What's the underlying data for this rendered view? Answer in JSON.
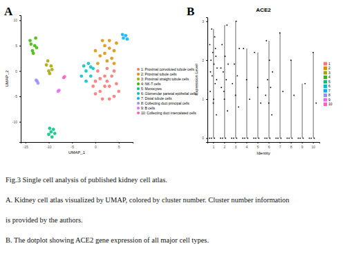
{
  "figure": {
    "panels": [
      "A",
      "B"
    ],
    "caption": [
      "Fig.3 Single cell analysis of published kidney cell atlas.",
      "A. Kidney cell atlas visualized by UMAP, colored by cluster number. Cluster number information",
      "is provided by the authors.",
      "B. The dotplot showing ACE2 gene expression of all major cell types."
    ]
  },
  "chart_data": [
    {
      "type": "scatter",
      "xlabel": "UMAP_1",
      "ylabel": "UMAP_2",
      "xlim": [
        -16,
        8
      ],
      "ylim": [
        -14,
        11
      ],
      "xticks": [
        -15,
        -10,
        -5,
        0,
        5
      ],
      "yticks": [
        -10,
        -5,
        0,
        5,
        10
      ],
      "legend": "right",
      "series": [
        {
          "name": "1: Proximal convoluted tubule cells",
          "color": "#F8766D",
          "x": [
            0,
            1,
            2,
            3,
            4,
            1.5,
            0.5,
            2.5,
            3.5,
            4.5,
            -0.5,
            2,
            3,
            1,
            4,
            0,
            2.5,
            5
          ],
          "y": [
            -2,
            -4,
            -1,
            -3,
            -5,
            -5.5,
            0,
            0.5,
            -1,
            -2.5,
            -3,
            -3,
            -5.5,
            -1.5,
            0,
            -4.5,
            -2,
            -4
          ]
        },
        {
          "name": "2: Proximal tubule cells",
          "color": "#D89000",
          "x": [
            1,
            2,
            3,
            4,
            0.5,
            2.5,
            3.5,
            1.5,
            4.5,
            2,
            3,
            0,
            4
          ],
          "y": [
            3,
            5,
            6,
            4,
            1.5,
            2,
            2.5,
            6,
            5.5,
            3.5,
            4.5,
            4,
            1.5
          ]
        },
        {
          "name": "3: Proximal straight tubule cells",
          "color": "#A3A500",
          "x": [
            -10,
            -9.5,
            -10.2,
            -9.8,
            -10.5,
            -9.3
          ],
          "y": [
            0,
            1,
            2,
            -0.5,
            1.2,
            0.3
          ]
        },
        {
          "name": "4: NK-T cells",
          "color": "#39B600",
          "x": [
            -13.5,
            -13,
            -14,
            -12.8,
            -13.3,
            -13.8,
            -12.6
          ],
          "y": [
            4,
            5,
            6,
            6.5,
            3.5,
            5.3,
            4.6
          ]
        },
        {
          "name": "5: Monocytes",
          "color": "#00BF7D",
          "x": [
            -9.5,
            -9,
            -10,
            -8.7,
            -9.3,
            -9.8
          ],
          "y": [
            -12,
            -11.5,
            -12.5,
            -12.3,
            -13,
            -11.3
          ]
        },
        {
          "name": "6: Glomerular parietal epithelial cells",
          "color": "#00BFC4",
          "x": [
            -2,
            -1,
            -2.5,
            -1.5,
            -3,
            -0.5,
            -2,
            -1
          ],
          "y": [
            0,
            -1,
            1,
            1.5,
            -1,
            0.5,
            -2,
            0.8
          ]
        },
        {
          "name": "7: Distal tubule cells",
          "color": "#00B0F6",
          "x": [
            6,
            6.5,
            5.8,
            6.8
          ],
          "y": [
            6.5,
            7,
            7.2,
            6.3
          ]
        },
        {
          "name": "8: Collecting duct principal cells",
          "color": "#9590FF",
          "x": [
            -12.5,
            -12.3,
            -12.7
          ],
          "y": [
            -2,
            -2.4,
            -1.8
          ]
        },
        {
          "name": "9: B cells",
          "color": "#E76BF3",
          "x": [
            -8,
            -7.8
          ],
          "y": [
            -4,
            -3.8
          ]
        },
        {
          "name": "10: Collecting duct intercalated cells",
          "color": "#FF62BC",
          "x": [
            -6.8,
            -6.6
          ],
          "y": [
            -1.3,
            -1.1
          ]
        }
      ]
    },
    {
      "type": "violin",
      "title": "ACE2",
      "xlabel": "Identity",
      "ylabel": "Expression Level",
      "categories": [
        "1",
        "2",
        "3",
        "4",
        "5",
        "6",
        "7",
        "8",
        "9",
        "10"
      ],
      "colors": [
        "#F8766D",
        "#D89000",
        "#A3A500",
        "#39B600",
        "#00BF7D",
        "#00BFC4",
        "#00B0F6",
        "#9590FF",
        "#E76BF3",
        "#FF62BC"
      ],
      "ylim": [
        -0.1,
        3.1
      ],
      "yticks": [
        0,
        1,
        2,
        3
      ],
      "legend": "right",
      "values": [
        [
          0,
          0,
          0,
          0.6,
          0.9,
          1.2,
          1.4,
          1.6,
          1.8,
          1.9,
          2.0,
          2.1,
          2.2,
          2.4,
          2.6,
          2.8,
          1.5,
          1.0,
          1.7,
          2.3
        ],
        [
          0,
          0,
          0,
          0.7,
          1.0,
          1.3,
          1.5,
          1.7,
          1.9,
          2.1,
          2.4,
          2.9,
          1.2,
          1.8
        ],
        [
          0,
          0,
          0,
          0.8,
          1.1,
          1.4,
          1.6,
          1.9,
          2.3,
          3.0
        ],
        [
          0,
          0,
          0,
          1.0,
          1.5,
          2.3
        ],
        [
          0,
          0,
          0,
          0.9,
          1.3,
          2.2
        ],
        [
          0,
          0,
          0,
          0.6,
          0.9,
          1.1,
          1.3,
          1.5,
          1.7,
          2.0,
          2.5
        ],
        [
          0,
          0,
          0,
          1.2,
          2.7
        ],
        [
          0,
          0,
          0,
          1.1,
          2.0
        ],
        [
          0,
          0,
          0,
          1.4
        ],
        [
          0,
          0,
          0,
          0.9,
          2.2
        ]
      ]
    }
  ]
}
